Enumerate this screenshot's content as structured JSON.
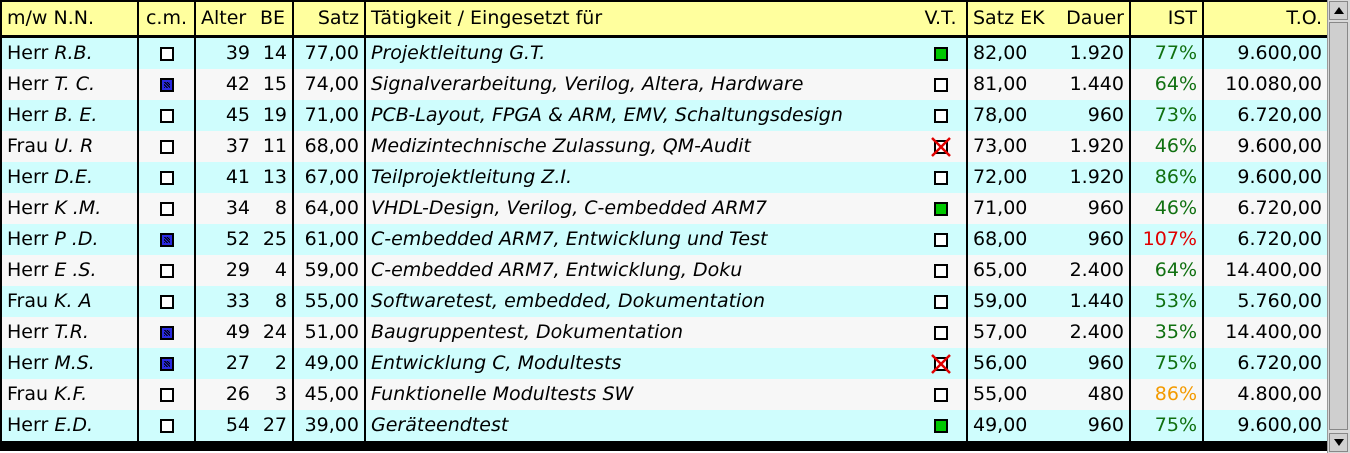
{
  "header": {
    "mw_nn": "m/w N.N.",
    "cm": "c.m.",
    "alter": "Alter",
    "be": "BE",
    "satz": "Satz",
    "taetigkeit": "Tätigkeit / Eingesetzt für",
    "vt": "V.T.",
    "satz_ek": "Satz EK",
    "dauer": "Dauer",
    "ist": "IST",
    "to": "T.O."
  },
  "rows": [
    {
      "anrede": "Herr",
      "name": "R.B.",
      "cm": "empty",
      "alter": "39",
      "be": "14",
      "satz": "77,00",
      "taetigkeit": "Projektleitung G.T.",
      "vt": "green",
      "satz_ek": "82,00",
      "dauer": "1.920",
      "ist": "77%",
      "ist_color": "green",
      "to": "9.600,00"
    },
    {
      "anrede": "Herr",
      "name": "T. C.",
      "cm": "checked",
      "alter": "42",
      "be": "15",
      "satz": "74,00",
      "taetigkeit": "Signalverarbeitung, Verilog, Altera, Hardware",
      "vt": "empty",
      "satz_ek": "81,00",
      "dauer": "1.440",
      "ist": "64%",
      "ist_color": "green",
      "to": "10.080,00"
    },
    {
      "anrede": "Herr",
      "name": "B. E.",
      "cm": "empty",
      "alter": "45",
      "be": "19",
      "satz": "71,00",
      "taetigkeit": "PCB-Layout, FPGA & ARM, EMV, Schaltungsdesign",
      "vt": "empty",
      "satz_ek": "78,00",
      "dauer": "960",
      "ist": "73%",
      "ist_color": "green",
      "to": "6.720,00"
    },
    {
      "anrede": "Frau",
      "name": "U. R",
      "cm": "empty",
      "alter": "37",
      "be": "11",
      "satz": "68,00",
      "taetigkeit": "Medizintechnische Zulassung, QM-Audit",
      "vt": "crossed",
      "satz_ek": "73,00",
      "dauer": "1.920",
      "ist": "46%",
      "ist_color": "green",
      "to": "9.600,00"
    },
    {
      "anrede": "Herr",
      "name": "D.E.",
      "cm": "empty",
      "alter": "41",
      "be": "13",
      "satz": "67,00",
      "taetigkeit": "Teilprojektleitung Z.I.",
      "vt": "empty",
      "satz_ek": "72,00",
      "dauer": "1.920",
      "ist": "86%",
      "ist_color": "green",
      "to": "9.600,00"
    },
    {
      "anrede": "Herr",
      "name": "K .M.",
      "cm": "empty",
      "alter": "34",
      "be": "8",
      "satz": "64,00",
      "taetigkeit": "VHDL-Design, Verilog, C-embedded ARM7",
      "vt": "green",
      "satz_ek": "71,00",
      "dauer": "960",
      "ist": "46%",
      "ist_color": "green",
      "to": "6.720,00"
    },
    {
      "anrede": "Herr",
      "name": "P .D.",
      "cm": "checked",
      "alter": "52",
      "be": "25",
      "satz": "61,00",
      "taetigkeit": "C-embedded ARM7, Entwicklung und Test",
      "vt": "empty",
      "satz_ek": "68,00",
      "dauer": "960",
      "ist": "107%",
      "ist_color": "red",
      "to": "6.720,00"
    },
    {
      "anrede": "Herr",
      "name": "E .S.",
      "cm": "empty",
      "alter": "29",
      "be": "4",
      "satz": "59,00",
      "taetigkeit": "C-embedded ARM7, Entwicklung, Doku",
      "vt": "empty",
      "satz_ek": "65,00",
      "dauer": "2.400",
      "ist": "64%",
      "ist_color": "green",
      "to": "14.400,00"
    },
    {
      "anrede": "Frau",
      "name": "K. A",
      "cm": "empty",
      "alter": "33",
      "be": "8",
      "satz": "55,00",
      "taetigkeit": "Softwaretest, embedded, Dokumentation",
      "vt": "empty",
      "satz_ek": "59,00",
      "dauer": "1.440",
      "ist": "53%",
      "ist_color": "green",
      "to": "5.760,00"
    },
    {
      "anrede": "Herr",
      "name": "T.R.",
      "cm": "checked",
      "alter": "49",
      "be": "24",
      "satz": "51,00",
      "taetigkeit": "Baugruppentest, Dokumentation",
      "vt": "empty",
      "satz_ek": "57,00",
      "dauer": "2.400",
      "ist": "35%",
      "ist_color": "green",
      "to": "14.400,00"
    },
    {
      "anrede": "Herr",
      "name": "M.S.",
      "cm": "checked",
      "alter": "27",
      "be": "2",
      "satz": "49,00",
      "taetigkeit": "Entwicklung C, Modultests",
      "vt": "crossed",
      "satz_ek": "56,00",
      "dauer": "960",
      "ist": "75%",
      "ist_color": "green",
      "to": "6.720,00"
    },
    {
      "anrede": "Frau",
      "name": "K.F.",
      "cm": "empty",
      "alter": "26",
      "be": "3",
      "satz": "45,00",
      "taetigkeit": "Funktionelle Modultests SW",
      "vt": "empty",
      "satz_ek": "55,00",
      "dauer": "480",
      "ist": "86%",
      "ist_color": "orange",
      "to": "4.800,00"
    },
    {
      "anrede": "Herr",
      "name": "E.D.",
      "cm": "empty",
      "alter": "54",
      "be": "27",
      "satz": "39,00",
      "taetigkeit": "Geräteendtest",
      "vt": "green",
      "satz_ek": "49,00",
      "dauer": "960",
      "ist": "75%",
      "ist_color": "green",
      "to": "9.600,00"
    }
  ],
  "colors": {
    "header_bg": "#ffff9e",
    "row_odd": "#cffdfd",
    "row_even": "#f7f7f7",
    "ist_green": "#107010",
    "ist_red": "#e00000",
    "ist_orange": "#f39a00",
    "checkbox_checked": "#2a2ae0",
    "checkbox_green": "#00c800"
  },
  "scrollbar": {
    "up_icon": "arrow-up-icon",
    "down_icon": "arrow-down-icon"
  }
}
